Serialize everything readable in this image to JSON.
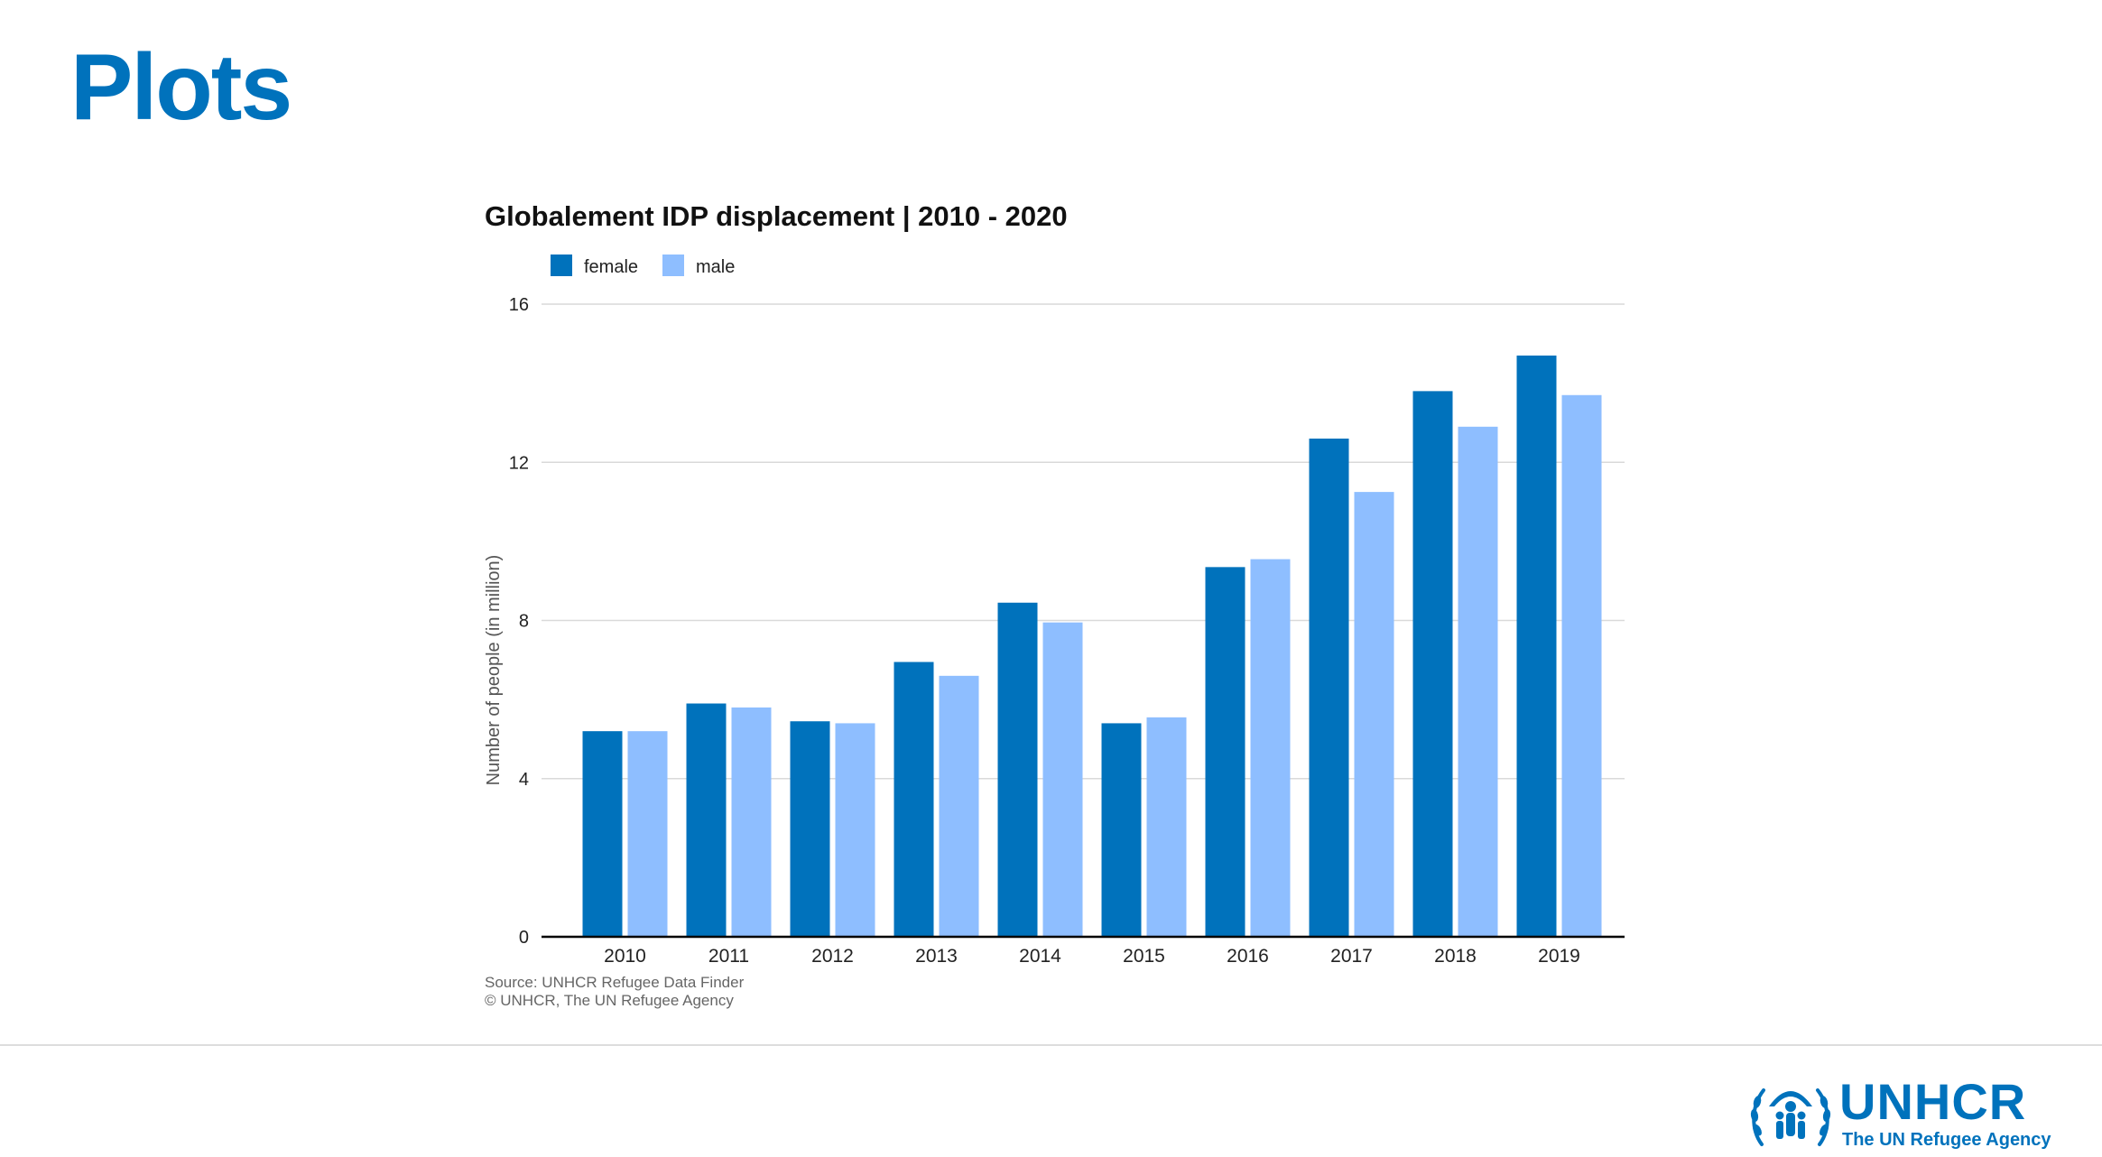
{
  "page": {
    "title": "Plots"
  },
  "colors": {
    "accent": "#0072bc",
    "female": "#0072bc",
    "male": "#8ebeff",
    "gridline": "#d9d9d9",
    "axis": "#000000",
    "source_text": "#666666"
  },
  "chart_data": {
    "type": "bar",
    "title": "Globalement IDP displacement | 2010 - 2020",
    "xlabel": "",
    "ylabel": "Number of people (in million)",
    "categories": [
      "2010",
      "2011",
      "2012",
      "2013",
      "2014",
      "2015",
      "2016",
      "2017",
      "2018",
      "2019"
    ],
    "series": [
      {
        "name": "female",
        "color": "#0072bc",
        "values": [
          5.2,
          5.9,
          5.45,
          6.95,
          8.45,
          5.4,
          9.35,
          12.6,
          13.8,
          14.7
        ]
      },
      {
        "name": "male",
        "color": "#8ebeff",
        "values": [
          5.2,
          5.8,
          5.4,
          6.6,
          7.95,
          5.55,
          9.55,
          11.25,
          12.9,
          13.7
        ]
      }
    ],
    "ylim": [
      0,
      16
    ],
    "yticks": [
      0,
      4,
      8,
      12,
      16
    ],
    "grid": true,
    "legend_position": "top-left",
    "source_lines": [
      "Source: UNHCR Refugee Data Finder",
      "© UNHCR, The UN Refugee Agency"
    ]
  },
  "logo": {
    "wordmark": "UNHCR",
    "tagline": "The UN Refugee Agency"
  }
}
